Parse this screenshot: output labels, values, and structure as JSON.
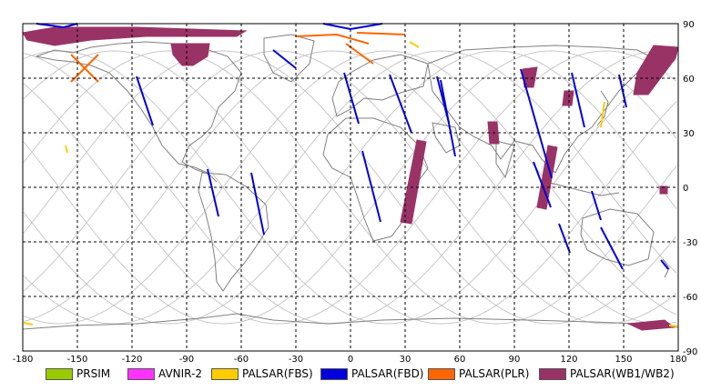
{
  "map": {
    "lon_ticks": [
      "-180",
      "-150",
      "-120",
      "-90",
      "-60",
      "-30",
      "0",
      "30",
      "60",
      "90",
      "120",
      "150",
      "180"
    ],
    "lat_ticks": [
      "90",
      "60",
      "30",
      "0",
      "-30",
      "-60",
      "-90"
    ]
  },
  "legend": [
    {
      "label": "PRSIM",
      "color": "#99cc00"
    },
    {
      "label": "AVNIR-2",
      "color": "#ff33ff"
    },
    {
      "label": "PALSAR(FBS)",
      "color": "#ffcc00"
    },
    {
      "label": "PALSAR(FBD)",
      "color": "#0000dd"
    },
    {
      "label": "PALSAR(PLR)",
      "color": "#ff6600"
    },
    {
      "label": "PALSAR(WB1/WB2)",
      "color": "#993366"
    }
  ],
  "colors": {
    "grid": "#000000",
    "coast": "#808080",
    "orbit": "#c8c8c8",
    "fbd": "#0000dd",
    "plr": "#ff6600",
    "fbs": "#ffcc00",
    "wb": "#993366"
  }
}
